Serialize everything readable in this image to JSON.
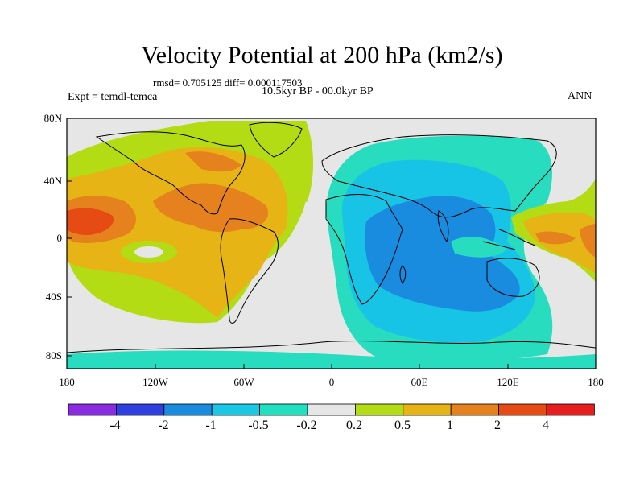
{
  "title": "Velocity Potential at 200 hPa (km2/s)",
  "stats": "rmsd= 0.705125 diff= 0.000117503",
  "period": "10.5kyr BP - 00.0kyr BP",
  "experiment": "Expt = temdl-temca",
  "season": "ANN",
  "y_ticks": [
    "80N",
    "40N",
    "0",
    "40S",
    "80S"
  ],
  "x_ticks": [
    "180",
    "120W",
    "60W",
    "0",
    "60E",
    "120E",
    "180"
  ],
  "colorbar": {
    "labels": [
      "-4",
      "-2",
      "-1",
      "-0.5",
      "-0.2",
      "0.2",
      "0.5",
      "1",
      "2",
      "4"
    ],
    "colors": [
      "#8a2be2",
      "#2f3fe0",
      "#1a8ce0",
      "#1ac8e6",
      "#20e0c0",
      "#e6e6e6",
      "#b4dc14",
      "#e6b414",
      "#e6821e",
      "#e64b14",
      "#e61e1e"
    ]
  },
  "palette": {
    "neg_02_05": "#28dcc0",
    "neg_05_1": "#18c4e6",
    "neg_1_2": "#1a8ce0",
    "near_zero": "#e6e6e6",
    "pos_02_05": "#b4dc14",
    "pos_05_1": "#e6b414",
    "pos_1_2": "#e6821e",
    "pos_2_4": "#e64b14"
  }
}
